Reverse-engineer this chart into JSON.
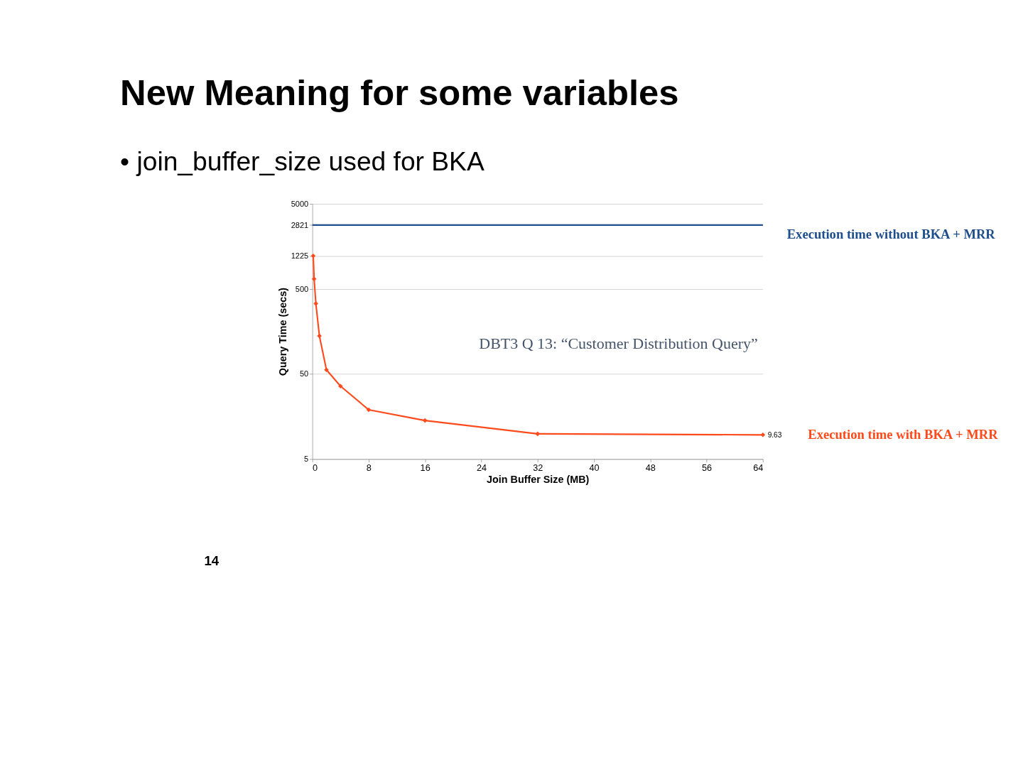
{
  "chart_data": {
    "type": "line",
    "title": "New Meaning for some variables",
    "subtitle": "• join_buffer_size used for BKA",
    "xlabel": "Join Buffer Size (MB)",
    "ylabel": "Query Time (secs)",
    "x": [
      0.125,
      0.25,
      0.5,
      1,
      2,
      4,
      8,
      16,
      32,
      64
    ],
    "series": [
      {
        "name": "Execution time with BKA + MRR",
        "color": "#ff4a1c",
        "values": [
          1225,
          655,
          336,
          140,
          56,
          36,
          19,
          14.2,
          9.9,
          9.63
        ],
        "value_labels": [
          null,
          null,
          null,
          null,
          null,
          null,
          null,
          null,
          null,
          "9.63"
        ]
      }
    ],
    "xlim": [
      0,
      64
    ],
    "xticks": [
      0,
      8,
      16,
      24,
      32,
      40,
      48,
      56,
      64
    ],
    "ylim": [
      5,
      5000
    ],
    "yticks": [
      5,
      50,
      500,
      1225,
      2821,
      5000
    ],
    "log": true,
    "grid": "y",
    "marker": "diamond",
    "line_style": "solid",
    "ref_lines": [
      {
        "axis": "y",
        "value": 2821,
        "label": "Execution time without BKA + MRR",
        "color": "#1f4e8c"
      }
    ],
    "annotations": [
      "DBT3 Q 13: “Customer Distribution Query”",
      "14"
    ]
  }
}
